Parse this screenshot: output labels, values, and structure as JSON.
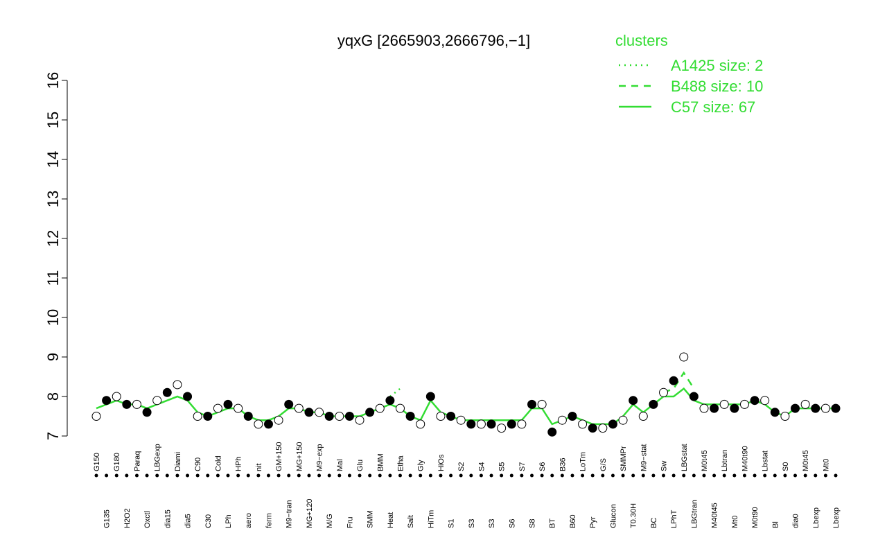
{
  "chart_data": {
    "type": "line",
    "title": "yqxG [2665903,2666796,−1]",
    "legend_title": "clusters",
    "categories": [
      "G150",
      "G135",
      "G180",
      "H2O2",
      "Paraq",
      "Oxctl",
      "LBGexp",
      "dia15",
      "Diami",
      "dia5",
      "C90",
      "C30",
      "Cold",
      "LPh",
      "HPh",
      "aero",
      "nit",
      "ferm",
      "GM+150",
      "M9−tran",
      "MG+150",
      "MG+120",
      "M9−exp",
      "M/G",
      "Mal",
      "Fru",
      "Glu",
      "SMM",
      "BMM",
      "Heat",
      "Etha",
      "Salt",
      "Gly",
      "HiTm",
      "HiOs",
      "S1",
      "S2",
      "S3",
      "S4",
      "S3",
      "S5",
      "S6",
      "S7",
      "S8",
      "S6",
      "BT",
      "B36",
      "B60",
      "LoTm",
      "Pyr",
      "G/S",
      "Glucon",
      "SMMPr",
      "T0.30H",
      "M9−stat",
      "BC",
      "Sw",
      "LPhT",
      "LBGstat",
      "LBGtran",
      "M0t45",
      "M40t45",
      "Lbtran",
      "Mt0",
      "M40t90",
      "M0t90",
      "Lbstat",
      "Bl",
      "S0",
      "dia0",
      "M0t45",
      "Lbexp",
      "Mt0",
      "Lbexp"
    ],
    "points": [
      7.5,
      7.9,
      8.0,
      7.8,
      7.8,
      7.6,
      7.9,
      8.1,
      8.3,
      8.0,
      7.5,
      7.5,
      7.7,
      7.8,
      7.7,
      7.5,
      7.3,
      7.3,
      7.4,
      7.8,
      7.7,
      7.6,
      7.6,
      7.5,
      7.5,
      7.5,
      7.4,
      7.6,
      7.7,
      7.9,
      7.7,
      7.5,
      7.3,
      8.0,
      7.5,
      7.5,
      7.4,
      7.3,
      7.3,
      7.3,
      7.2,
      7.3,
      7.3,
      7.8,
      7.8,
      7.1,
      7.4,
      7.5,
      7.3,
      7.2,
      7.2,
      7.3,
      7.4,
      7.9,
      7.5,
      7.8,
      8.1,
      8.4,
      9.0,
      8.0,
      7.7,
      7.7,
      7.8,
      7.7,
      7.8,
      7.9,
      7.9,
      7.6,
      7.5,
      7.7,
      7.8,
      7.7,
      7.7,
      7.7
    ],
    "series": [
      {
        "name": "A1425 size: 2",
        "color": "#33dd33",
        "dash": "2,6",
        "values": [
          null,
          null,
          null,
          null,
          null,
          null,
          null,
          null,
          null,
          null,
          null,
          null,
          null,
          null,
          null,
          null,
          null,
          null,
          null,
          null,
          null,
          null,
          null,
          null,
          null,
          null,
          null,
          null,
          null,
          8.0,
          8.2,
          null,
          null,
          null,
          null,
          null,
          null,
          null,
          null,
          null,
          null,
          null,
          null,
          null,
          null,
          null,
          null,
          null,
          null,
          null,
          null,
          null,
          null,
          null,
          null,
          null,
          null,
          null,
          null,
          null,
          null,
          null,
          null,
          null,
          null,
          null,
          null,
          null,
          null,
          null,
          null,
          null,
          null,
          null
        ]
      },
      {
        "name": "B488 size: 10",
        "color": "#33dd33",
        "dash": "10,8",
        "values": [
          null,
          null,
          null,
          null,
          null,
          null,
          null,
          null,
          null,
          null,
          null,
          null,
          null,
          null,
          null,
          null,
          null,
          null,
          null,
          null,
          null,
          null,
          null,
          null,
          null,
          null,
          null,
          null,
          null,
          null,
          null,
          null,
          null,
          null,
          null,
          null,
          null,
          null,
          null,
          null,
          null,
          null,
          null,
          null,
          null,
          null,
          null,
          null,
          null,
          null,
          null,
          null,
          null,
          null,
          null,
          null,
          8.1,
          8.2,
          8.6,
          8.2,
          null,
          null,
          null,
          null,
          null,
          null,
          null,
          null,
          null,
          null,
          null,
          null,
          null,
          null
        ]
      },
      {
        "name": "C57 size: 67",
        "color": "#33dd33",
        "dash": "",
        "values": [
          7.7,
          7.8,
          7.9,
          7.8,
          7.8,
          7.7,
          7.8,
          7.9,
          8.0,
          7.9,
          7.6,
          7.5,
          7.6,
          7.7,
          7.7,
          7.5,
          7.4,
          7.4,
          7.5,
          7.7,
          7.7,
          7.6,
          7.6,
          7.5,
          7.5,
          7.5,
          7.5,
          7.6,
          7.7,
          7.8,
          7.7,
          7.5,
          7.4,
          7.9,
          7.6,
          7.5,
          7.4,
          7.4,
          7.4,
          7.4,
          7.4,
          7.4,
          7.4,
          7.7,
          7.7,
          7.3,
          7.4,
          7.5,
          7.4,
          7.3,
          7.3,
          7.3,
          7.5,
          7.8,
          7.6,
          7.8,
          8.0,
          8.0,
          8.2,
          7.9,
          7.8,
          7.8,
          7.8,
          7.8,
          7.8,
          7.9,
          7.8,
          7.6,
          7.5,
          7.7,
          7.7,
          7.7,
          7.7,
          7.7
        ]
      }
    ],
    "ylim": [
      7,
      16
    ],
    "yticks": [
      7,
      8,
      9,
      10,
      11,
      12,
      13,
      14,
      15,
      16
    ]
  }
}
